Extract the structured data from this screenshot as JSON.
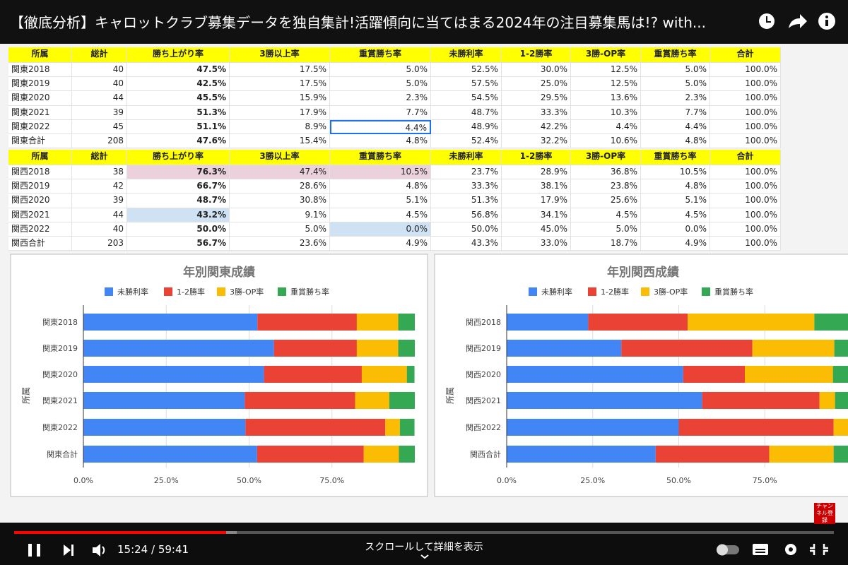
{
  "video": {
    "title": "【徹底分析】キャロットクラブ募集データを独自集計!活躍傾向に当てはまる2024年の注目募集馬は!? with...",
    "time": "15:24 / 59:41",
    "scroll_hint": "スクロールして詳細を表示",
    "subscribe_badge": "チャンネル登録"
  },
  "tables": {
    "kanto": {
      "header": [
        "所属",
        "総計",
        "勝ち上がり率",
        "3勝以上率",
        "重賞勝ち率",
        "未勝利率",
        "1-2勝率",
        "3勝-OP率",
        "重賞勝ち率",
        "合計"
      ],
      "rows": [
        [
          "関東2018",
          "40",
          "47.5%",
          "17.5%",
          "5.0%",
          "52.5%",
          "30.0%",
          "12.5%",
          "5.0%",
          "100.0%"
        ],
        [
          "関東2019",
          "40",
          "42.5%",
          "17.5%",
          "5.0%",
          "57.5%",
          "25.0%",
          "12.5%",
          "5.0%",
          "100.0%"
        ],
        [
          "関東2020",
          "44",
          "45.5%",
          "15.9%",
          "2.3%",
          "54.5%",
          "29.5%",
          "13.6%",
          "2.3%",
          "100.0%"
        ],
        [
          "関東2021",
          "39",
          "51.3%",
          "17.9%",
          "7.7%",
          "48.7%",
          "33.3%",
          "10.3%",
          "7.7%",
          "100.0%"
        ],
        [
          "関東2022",
          "45",
          "51.1%",
          "8.9%",
          "4.4%",
          "48.9%",
          "42.2%",
          "4.4%",
          "4.4%",
          "100.0%"
        ],
        [
          "関東合計",
          "208",
          "47.6%",
          "15.4%",
          "4.8%",
          "52.4%",
          "32.2%",
          "10.6%",
          "4.8%",
          "100.0%"
        ]
      ]
    },
    "kansai": {
      "header": [
        "所属",
        "総計",
        "勝ち上がり率",
        "3勝以上率",
        "重賞勝ち率",
        "未勝利率",
        "1-2勝率",
        "3勝-OP率",
        "重賞勝ち率",
        "合計"
      ],
      "rows": [
        [
          "関西2018",
          "38",
          "76.3%",
          "47.4%",
          "10.5%",
          "23.7%",
          "28.9%",
          "36.8%",
          "10.5%",
          "100.0%"
        ],
        [
          "関西2019",
          "42",
          "66.7%",
          "28.6%",
          "4.8%",
          "33.3%",
          "38.1%",
          "23.8%",
          "4.8%",
          "100.0%"
        ],
        [
          "関西2020",
          "39",
          "48.7%",
          "30.8%",
          "5.1%",
          "51.3%",
          "17.9%",
          "25.6%",
          "5.1%",
          "100.0%"
        ],
        [
          "関西2021",
          "44",
          "43.2%",
          "9.1%",
          "4.5%",
          "56.8%",
          "34.1%",
          "4.5%",
          "4.5%",
          "100.0%"
        ],
        [
          "関西2022",
          "40",
          "50.0%",
          "5.0%",
          "0.0%",
          "50.0%",
          "45.0%",
          "5.0%",
          "0.0%",
          "100.0%"
        ],
        [
          "関西合計",
          "203",
          "56.7%",
          "23.6%",
          "4.9%",
          "43.3%",
          "33.0%",
          "18.7%",
          "4.9%",
          "100.0%"
        ]
      ]
    }
  },
  "chart_data": [
    {
      "type": "bar",
      "orientation": "horizontal",
      "stacked": true,
      "title": "年別関東成績",
      "ylabel": "所属",
      "legend": "top",
      "categories": [
        "関東2018",
        "関東2019",
        "関東2020",
        "関東2021",
        "関東2022",
        "関東合計"
      ],
      "series": [
        {
          "name": "未勝利率",
          "color": "#4285f4",
          "values": [
            52.5,
            57.5,
            54.5,
            48.7,
            48.9,
            52.4
          ]
        },
        {
          "name": "1-2勝率",
          "color": "#ea4335",
          "values": [
            30.0,
            25.0,
            29.5,
            33.3,
            42.2,
            32.2
          ]
        },
        {
          "name": "3勝-OP率",
          "color": "#fbbc04",
          "values": [
            12.5,
            12.5,
            13.6,
            10.3,
            4.4,
            10.6
          ]
        },
        {
          "name": "重賞勝ち率",
          "color": "#34a853",
          "values": [
            5.0,
            5.0,
            2.3,
            7.7,
            4.4,
            4.8
          ]
        }
      ],
      "xlim": [
        0,
        100
      ],
      "xticks": [
        {
          "value": 0,
          "label": "0.0%"
        },
        {
          "value": 25,
          "label": "25.0%"
        },
        {
          "value": 50,
          "label": "50.0%"
        },
        {
          "value": 75,
          "label": "75.0%"
        }
      ],
      "grid": true
    },
    {
      "type": "bar",
      "orientation": "horizontal",
      "stacked": true,
      "title": "年別関西成績",
      "ylabel": "所属",
      "legend": "top",
      "categories": [
        "関西2018",
        "関西2019",
        "関西2020",
        "関西2021",
        "関西2022",
        "関西合計"
      ],
      "series": [
        {
          "name": "未勝利率",
          "color": "#4285f4",
          "values": [
            23.7,
            33.3,
            51.3,
            56.8,
            50.0,
            43.3
          ]
        },
        {
          "name": "1-2勝率",
          "color": "#ea4335",
          "values": [
            28.9,
            38.1,
            17.9,
            34.1,
            45.0,
            33.0
          ]
        },
        {
          "name": "3勝-OP率",
          "color": "#fbbc04",
          "values": [
            36.8,
            23.8,
            25.6,
            4.5,
            5.0,
            18.7
          ]
        },
        {
          "name": "重賞勝ち率",
          "color": "#34a853",
          "values": [
            10.5,
            4.8,
            5.1,
            4.5,
            0.0,
            4.9
          ]
        }
      ],
      "xlim": [
        0,
        100
      ],
      "xticks": [
        {
          "value": 0,
          "label": "0.0%"
        },
        {
          "value": 25,
          "label": "25.0%"
        },
        {
          "value": 50,
          "label": "50.0%"
        },
        {
          "value": 75,
          "label": "75.0%"
        }
      ],
      "grid": true
    }
  ]
}
